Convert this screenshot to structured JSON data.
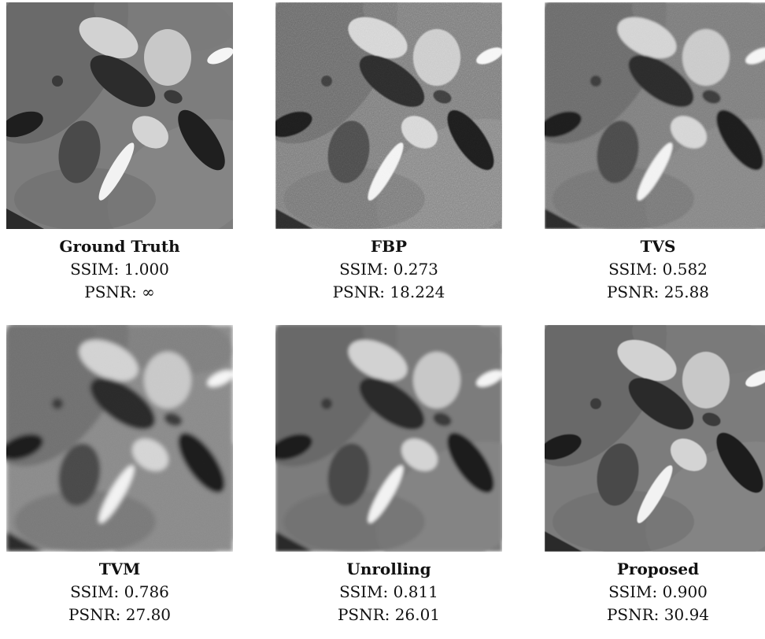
{
  "panels": [
    {
      "name": "Ground Truth",
      "ssim": "SSIM: 1.000",
      "psnr": "PSNR: ∞",
      "style": "sharp"
    },
    {
      "name": "FBP",
      "ssim": "SSIM: 0.273",
      "psnr": "PSNR: 18.224",
      "style": "noisy"
    },
    {
      "name": "TVS",
      "ssim": "SSIM: 0.582",
      "psnr": "PSNR: 25.88",
      "style": "grainy"
    },
    {
      "name": "TVM",
      "ssim": "SSIM: 0.786",
      "psnr": "PSNR: 27.80",
      "style": "blurry"
    },
    {
      "name": "Unrolling",
      "ssim": "SSIM: 0.811",
      "psnr": "PSNR: 26.01",
      "style": "smooth"
    },
    {
      "name": "Proposed",
      "ssim": "SSIM: 0.900",
      "psnr": "PSNR: 30.94",
      "style": "crisp"
    }
  ]
}
